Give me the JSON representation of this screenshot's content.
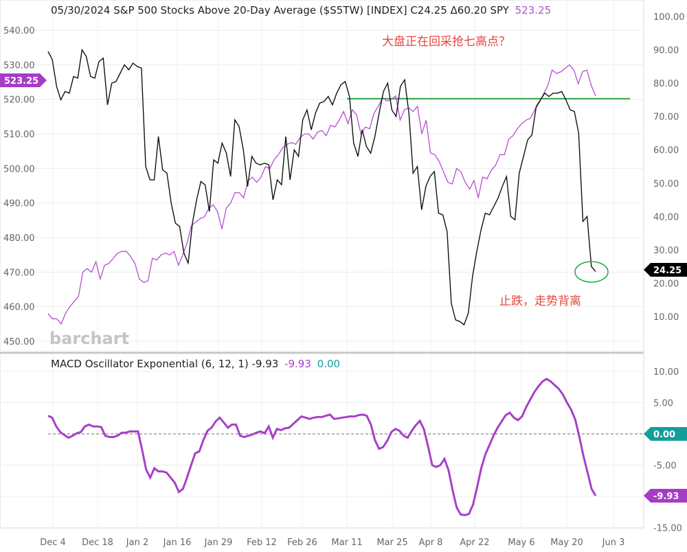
{
  "header": {
    "main_title": "05/30/2024 S&P 500 Stocks Above 20-Day Average ($S5TW) [INDEX] C24.25 Δ60.20 SPY",
    "spy_label": "523.25",
    "macd_title": "MACD Oscillator Exponential  (6, 12, 1) -9.93",
    "macd_value_1": "-9.93",
    "macd_value_2": "0.00"
  },
  "brand": "barchart",
  "annotations": {
    "top_note": "大盘正在回采抢七高点？",
    "bottom_note": "止跌，走势背离"
  },
  "badges": {
    "spy_last": "523.25",
    "s5tw_last": "24.25",
    "macd_zero": "0.00",
    "macd_last": "-9.93"
  },
  "colors": {
    "s5tw_line": "#111111",
    "spy_line": "#b44fd0",
    "macd_line": "#a640c8",
    "resistance": "#2aa148",
    "highlight_circle": "#22b04a",
    "spy_badge": "#a63cc6",
    "s5tw_badge": "#000000",
    "zero_badge": "#139e9a",
    "macd_badge": "#a63cc6",
    "annotation_text": "#e8453c"
  },
  "chart_data": [
    {
      "type": "line",
      "title": "S&P 500 Stocks Above 20-Day Average ($S5TW) with SPY overlay",
      "x_ticks": [
        "Dec 4",
        "Dec 18",
        "Jan 2",
        "Jan 16",
        "Jan 29",
        "Feb 12",
        "Feb 26",
        "Mar 11",
        "Mar 25",
        "Apr 8",
        "Apr 22",
        "May 6",
        "May 20",
        "Jun 3"
      ],
      "left_axis": {
        "label": "SPY",
        "ticks": [
          "540.00",
          "530.00",
          "520.00",
          "510.00",
          "500.00",
          "490.00",
          "480.00",
          "470.00",
          "460.00",
          "450.00"
        ],
        "ylim": [
          448,
          543
        ]
      },
      "right_axis": {
        "label": "$S5TW",
        "ticks": [
          "100.00",
          "90.00",
          "80.00",
          "70.00",
          "60.00",
          "50.00",
          "40.00",
          "30.00",
          "20.00",
          "10.00"
        ],
        "ylim": [
          2.5,
          100
        ]
      },
      "grid": true,
      "resistance_level_spy": 520.2,
      "series": [
        {
          "name": "$S5TW",
          "axis": "right",
          "values": [
            89.5,
            87.0,
            79.0,
            75.0,
            77.5,
            77.0,
            82.0,
            81.5,
            90.0,
            88.0,
            82.0,
            81.5,
            86.5,
            87.5,
            73.5,
            80.0,
            80.5,
            83.0,
            85.5,
            84.0,
            86.0,
            85.0,
            84.5,
            55.0,
            51.0,
            51.0,
            64.0,
            54.0,
            53.0,
            44.0,
            38.0,
            37.0,
            29.0,
            26.0,
            38.0,
            45.0,
            50.5,
            49.5,
            41.5,
            57.0,
            56.0,
            62.0,
            59.0,
            52.0,
            69.0,
            67.0,
            60.0,
            49.0,
            58.0,
            56.0,
            55.5,
            56.0,
            55.5,
            45.0,
            51.0,
            49.5,
            64.0,
            51.0,
            60.0,
            58.0,
            69.0,
            72.0,
            66.0,
            71.0,
            74.0,
            74.5,
            76.0,
            73.5,
            77.0,
            79.5,
            80.5,
            76.0,
            62.0,
            58.0,
            66.0,
            61.0,
            59.0,
            64.0,
            71.0,
            77.5,
            80.0,
            72.0,
            70.0,
            79.0,
            81.0,
            71.0,
            53.0,
            55.0,
            42.0,
            49.0,
            52.0,
            53.5,
            41.0,
            40.5,
            35.5,
            14.0,
            9.0,
            8.5,
            7.5,
            11.0,
            22.0,
            29.5,
            36.0,
            41.0,
            40.5,
            43.0,
            45.5,
            49.0,
            52.0,
            40.0,
            39.0,
            53.0,
            58.0,
            63.0,
            64.5,
            73.0,
            75.0,
            77.0,
            76.0,
            77.0,
            77.0,
            77.5,
            75.0,
            72.0,
            71.5,
            65.0,
            38.5,
            40.0,
            25.0,
            23.5
          ],
          "x_range": [
            "Dec 1",
            "May 30"
          ]
        },
        {
          "name": "SPY",
          "axis": "left",
          "values": [
            458.0,
            456.5,
            456.5,
            455.0,
            458.0,
            460.0,
            461.5,
            463.0,
            470.0,
            471.0,
            470.0,
            473.0,
            468.0,
            472.0,
            472.5,
            474.0,
            475.5,
            476.0,
            476.0,
            474.5,
            472.5,
            468.0,
            467.0,
            467.5,
            474.0,
            473.5,
            475.0,
            475.5,
            475.0,
            476.0,
            472.0,
            475.0,
            478.5,
            483.5,
            484.5,
            485.5,
            486.0,
            488.5,
            489.5,
            487.5,
            482.5,
            488.5,
            490.0,
            493.0,
            493.0,
            491.5,
            496.5,
            497.5,
            496.0,
            497.5,
            500.5,
            500.0,
            502.5,
            504.0,
            506.0,
            507.0,
            507.5,
            507.0,
            509.0,
            510.0,
            510.0,
            508.5,
            510.5,
            511.0,
            509.5,
            512.5,
            512.0,
            514.0,
            516.5,
            513.0,
            517.0,
            515.5,
            510.0,
            512.0,
            511.5,
            516.0,
            518.0,
            520.5,
            519.5,
            520.0,
            521.0,
            514.0,
            517.0,
            517.5,
            516.5,
            518.0,
            510.0,
            514.0,
            504.5,
            504.0,
            502.0,
            499.0,
            496.0,
            495.5,
            500.0,
            499.0,
            496.0,
            494.0,
            496.5,
            491.5,
            497.5,
            497.0,
            499.5,
            501.0,
            504.0,
            504.0,
            508.5,
            509.5,
            511.5,
            513.0,
            514.0,
            514.5,
            517.0,
            519.0,
            521.5,
            524.0,
            528.5,
            527.5,
            528.0,
            529.0,
            530.0,
            528.5,
            524.5,
            528.0,
            528.5,
            524.0,
            521.0
          ],
          "x_range": [
            "Dec 1",
            "May 30"
          ]
        }
      ]
    },
    {
      "type": "line",
      "title": "MACD Oscillator Exponential (6, 12, 1)",
      "y_ticks": [
        "10.00",
        "5.00",
        "-5.00",
        "-10.00",
        "-15.00"
      ],
      "ylim": [
        -14.5,
        11.5
      ],
      "zero_line": 0,
      "series": [
        {
          "name": "MACD Oscillator",
          "values": [
            2.9,
            2.6,
            1.2,
            0.3,
            -0.2,
            -0.6,
            -0.3,
            0.1,
            0.3,
            1.2,
            1.5,
            1.2,
            1.2,
            1.1,
            -0.3,
            -0.5,
            -0.5,
            -0.3,
            0.2,
            0.2,
            0.4,
            0.4,
            0.4,
            -2.5,
            -5.7,
            -7.0,
            -5.5,
            -6.0,
            -6.0,
            -6.2,
            -7.0,
            -7.8,
            -9.3,
            -8.8,
            -7.0,
            -5.0,
            -3.1,
            -2.8,
            -1.0,
            0.5,
            1.0,
            2.0,
            2.6,
            1.8,
            1.0,
            1.5,
            1.5,
            -0.3,
            -0.5,
            -0.3,
            -0.1,
            0.2,
            0.4,
            0.1,
            1.2,
            -0.6,
            0.8,
            0.6,
            0.9,
            1.0,
            1.6,
            2.2,
            2.8,
            2.6,
            2.4,
            2.6,
            2.7,
            2.7,
            2.9,
            3.1,
            2.4,
            2.5,
            2.6,
            2.7,
            2.8,
            2.8,
            3.0,
            3.1,
            2.9,
            1.5,
            -1.0,
            -2.4,
            -2.1,
            -1.1,
            0.3,
            0.8,
            0.5,
            -0.3,
            -0.6,
            0.5,
            1.4,
            2.1,
            0.7,
            -2.0,
            -5.0,
            -5.3,
            -5.0,
            -4.0,
            -5.8,
            -9.0,
            -11.8,
            -12.9,
            -13.0,
            -12.8,
            -11.3,
            -8.5,
            -5.5,
            -3.3,
            -1.8,
            -0.3,
            1.0,
            2.0,
            3.0,
            3.4,
            2.6,
            2.2,
            2.8,
            4.3,
            5.5,
            6.7,
            7.6,
            8.4,
            8.8,
            8.4,
            7.8,
            7.2,
            6.3,
            5.0,
            3.9,
            2.3,
            -0.4,
            -3.5,
            -6.1,
            -8.8,
            -9.9
          ],
          "x_range": [
            "Dec 1",
            "May 30"
          ]
        }
      ]
    }
  ]
}
